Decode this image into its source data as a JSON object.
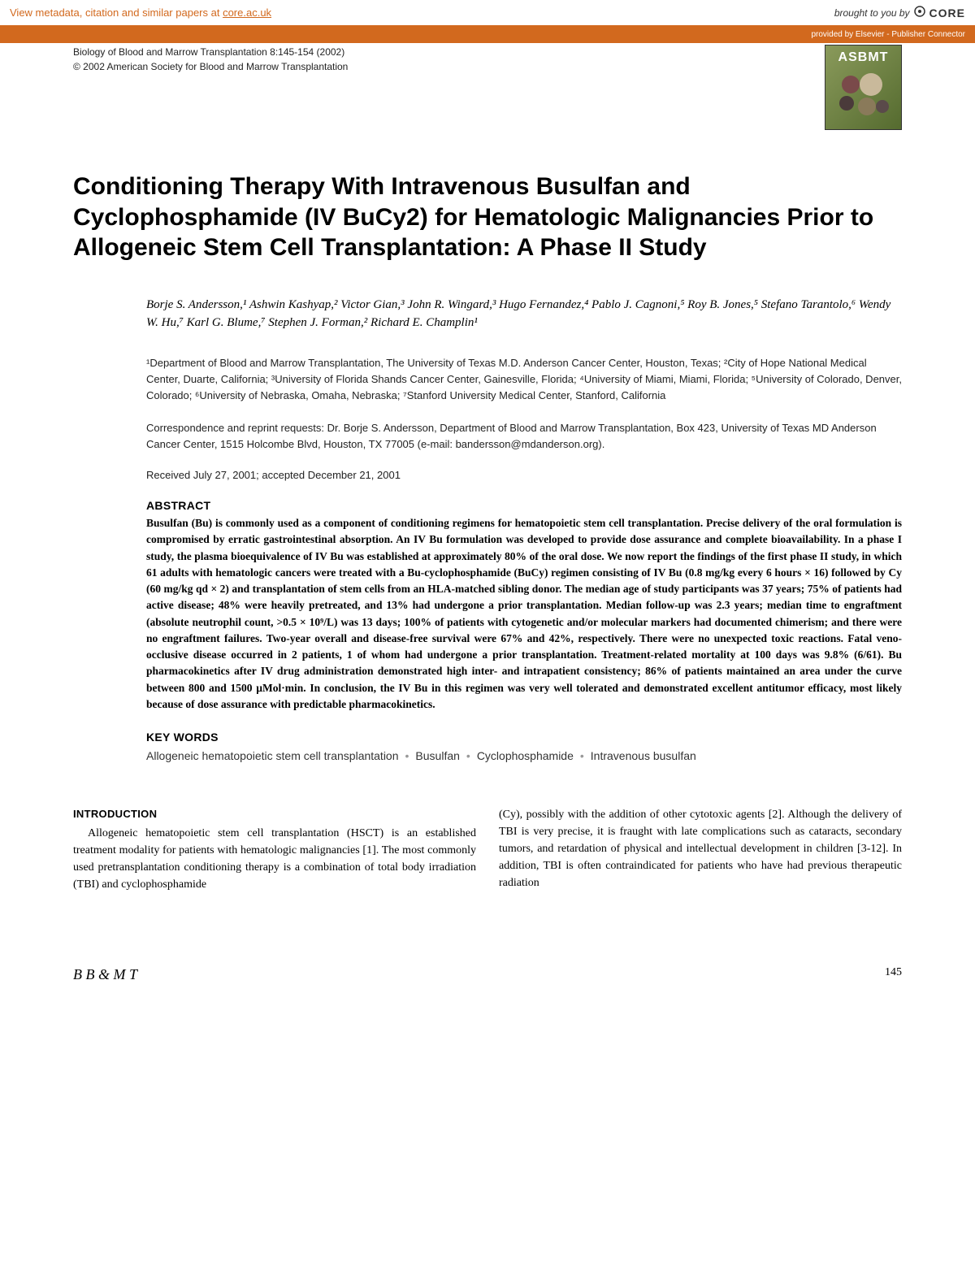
{
  "banner": {
    "metadata_text": "View metadata, citation and similar papers at ",
    "metadata_link": "core.ac.uk",
    "brought_by": "brought to you by",
    "core": "CORE",
    "provided_by": "provided by Elsevier - Publisher Connector"
  },
  "meta": {
    "journal_line": "Biology of Blood and Marrow Transplantation 8:145-154 (2002)",
    "copyright": "© 2002 American Society for Blood and Marrow Transplantation",
    "logo_text": "ASBMT"
  },
  "title": "Conditioning Therapy With Intravenous Busulfan and Cyclophosphamide (IV BuCy2) for Hematologic Malignancies Prior to Allogeneic Stem Cell Transplantation: A Phase II Study",
  "authors_html": "Borje S. Andersson,¹ Ashwin Kashyap,² Victor Gian,³ John R. Wingard,³ Hugo Fernandez,⁴ Pablo J. Cagnoni,⁵ Roy B. Jones,⁵ Stefano Tarantolo,⁶ Wendy W. Hu,⁷ Karl G. Blume,⁷ Stephen J. Forman,² Richard E. Champlin¹",
  "affiliations": "¹Department of Blood and Marrow Transplantation, The University of Texas M.D. Anderson Cancer Center, Houston, Texas; ²City of Hope National Medical Center, Duarte, California; ³University of Florida Shands Cancer Center, Gainesville, Florida; ⁴University of Miami, Miami, Florida; ⁵University of Colorado, Denver, Colorado; ⁶University of Nebraska, Omaha, Nebraska; ⁷Stanford University Medical Center, Stanford, California",
  "correspondence": "Correspondence and reprint requests: Dr. Borje S. Andersson, Department of Blood and Marrow Transplantation, Box 423, University of Texas MD Anderson Cancer Center, 1515 Holcombe Blvd, Houston, TX 77005 (e-mail: bandersson@mdanderson.org).",
  "received": "Received July 27, 2001; accepted December 21, 2001",
  "abstract_head": "ABSTRACT",
  "abstract": "Busulfan (Bu) is commonly used as a component of conditioning regimens for hematopoietic stem cell transplantation. Precise delivery of the oral formulation is compromised by erratic gastrointestinal absorption. An IV Bu formulation was developed to provide dose assurance and complete bioavailability. In a phase I study, the plasma bioequivalence of IV Bu was established at approximately 80% of the oral dose. We now report the findings of the first phase II study, in which 61 adults with hematologic cancers were treated with a Bu-cyclophosphamide (BuCy) regimen consisting of IV Bu (0.8 mg/kg every 6 hours × 16) followed by Cy (60 mg/kg qd × 2) and transplantation of stem cells from an HLA-matched sibling donor. The median age of study participants was 37 years; 75% of patients had active disease; 48% were heavily pretreated, and 13% had undergone a prior transplantation. Median follow-up was 2.3 years; median time to engraftment (absolute neutrophil count, >0.5 × 10⁹/L) was 13 days; 100% of patients with cytogenetic and/or molecular markers had documented chimerism; and there were no engraftment failures. Two-year overall and disease-free survival were 67% and 42%, respectively. There were no unexpected toxic reactions. Fatal veno-occlusive disease occurred in 2 patients, 1 of whom had undergone a prior transplantation. Treatment-related mortality at 100 days was 9.8% (6/61). Bu pharmacokinetics after IV drug administration demonstrated high inter- and intrapatient consistency; 86% of patients maintained an area under the curve between 800 and 1500 µMol·min. In conclusion, the IV Bu in this regimen was very well tolerated and demonstrated excellent antitumor efficacy, most likely because of dose assurance with predictable pharmacokinetics.",
  "keywords_head": "KEY WORDS",
  "keywords": [
    "Allogeneic hematopoietic stem cell transplantation",
    "Busulfan",
    "Cyclophosphamide",
    "Intravenous busulfan"
  ],
  "intro_head": "INTRODUCTION",
  "intro_p1": "Allogeneic hematopoietic stem cell transplantation (HSCT) is an established treatment modality for patients with hematologic malignancies [1]. The most commonly used pretransplantation conditioning therapy is a combination of total body irradiation (TBI) and cyclophosphamide",
  "intro_p2": "(Cy), possibly with the addition of other cytotoxic agents [2]. Although the delivery of TBI is very precise, it is fraught with late complications such as cataracts, secondary tumors, and retardation of physical and intellectual development in children [3-12]. In addition, TBI is often contraindicated for patients who have had previous therapeutic radiation",
  "footer": {
    "journal": "B B & M T",
    "page": "145"
  }
}
